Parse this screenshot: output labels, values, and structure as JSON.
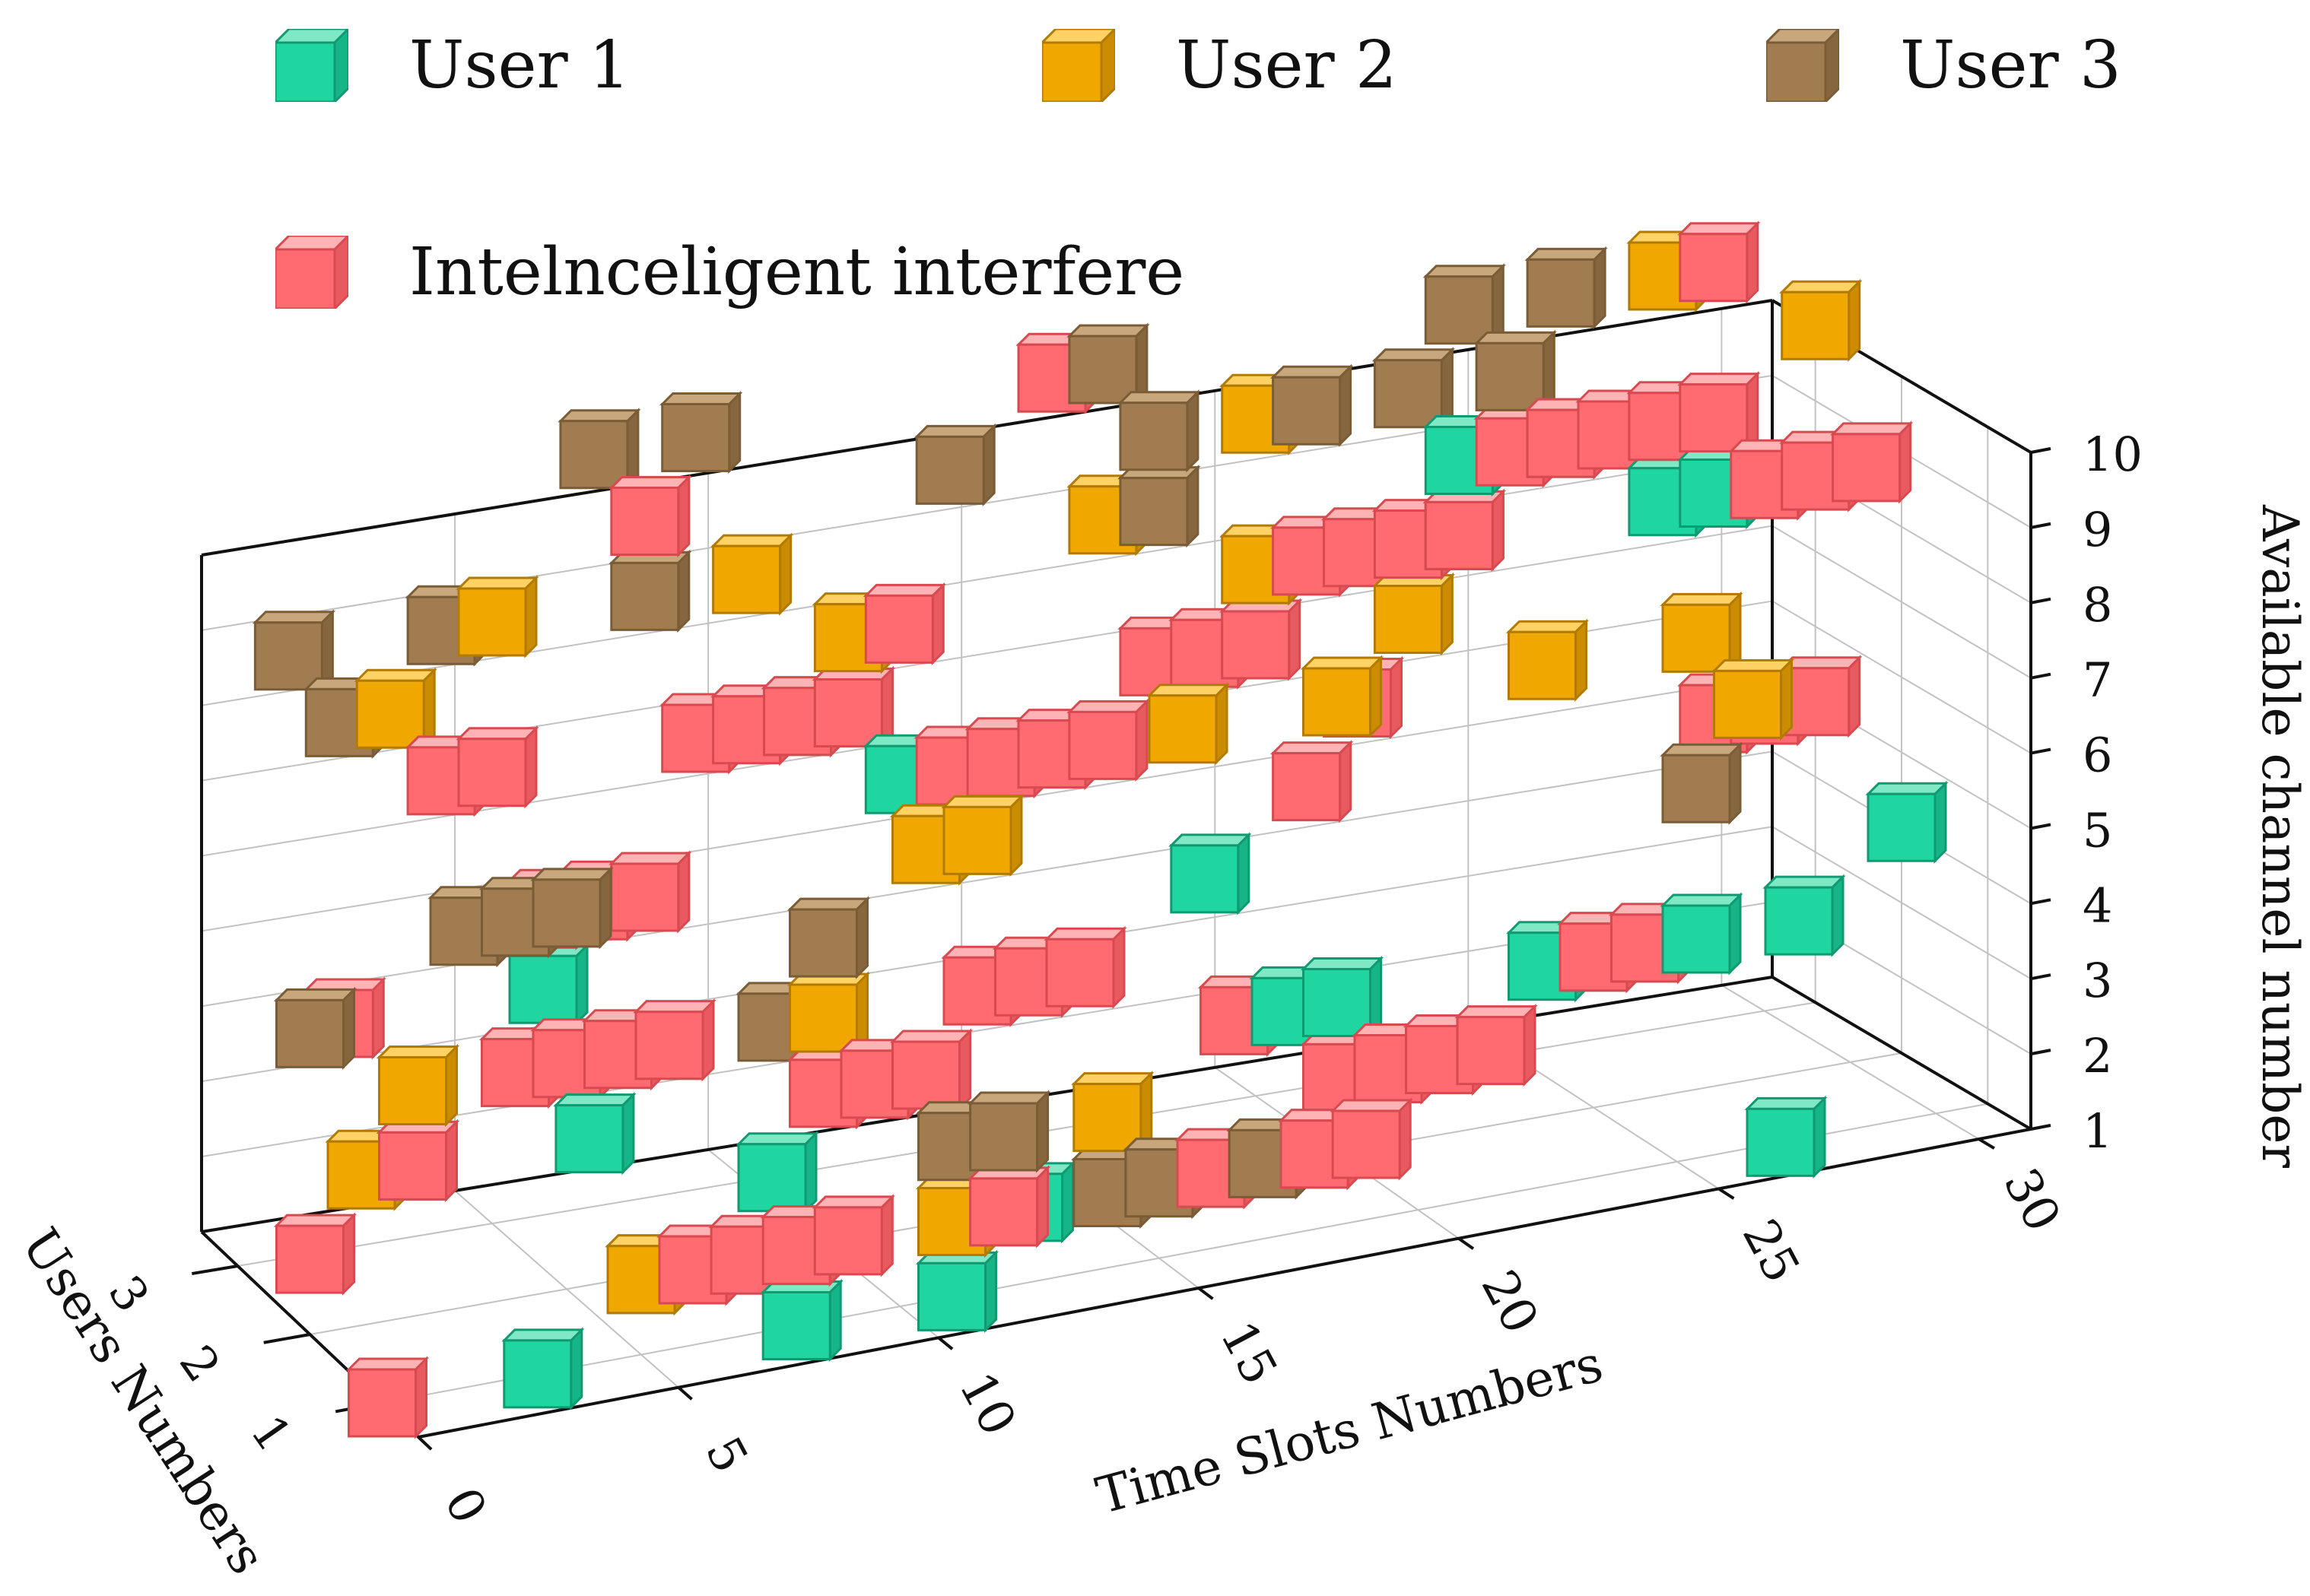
{
  "chart_data": {
    "type": "3d-bar",
    "title": "",
    "xlabel": "Time Slots Numbers",
    "ylabel": "Users Numbers",
    "zlabel": "Available channel number",
    "x_ticks": [
      "0",
      "5",
      "10",
      "15",
      "20",
      "25",
      "30"
    ],
    "y_ticks": [
      "1",
      "2",
      "3"
    ],
    "z_ticks": [
      "1",
      "2",
      "3",
      "4",
      "5",
      "6",
      "7",
      "8",
      "9",
      "10"
    ],
    "xlim": [
      0,
      31
    ],
    "ylim": [
      0.5,
      3.5
    ],
    "zlim": [
      1,
      10
    ],
    "grid": true,
    "legend_position": "top",
    "colors": {
      "user1": "#20d6a0",
      "user2": "#f0a800",
      "user3": "#a07c50",
      "interferer": "#ff6b70"
    },
    "legend": [
      {
        "key": "user1",
        "label": "User 1"
      },
      {
        "key": "user2",
        "label": "User 2"
      },
      {
        "key": "user3",
        "label": "User 3"
      },
      {
        "key": "interferer",
        "label": "Intelnceligent interfere"
      }
    ],
    "series": [
      {
        "name": "User 1",
        "key": "user1",
        "user": 1,
        "points": [
          {
            "t": 3,
            "c": 1
          },
          {
            "t": 6,
            "c": 2
          },
          {
            "t": 8,
            "c": 1
          },
          {
            "t": 11,
            "c": 1
          },
          {
            "t": 18,
            "c": 2
          },
          {
            "t": 27,
            "c": 1
          },
          {
            "t": 5,
            "c": 2
          },
          {
            "t": 4,
            "c": 4
          }
        ]
      },
      {
        "name": "User 1",
        "key": "user1",
        "user": 2,
        "points": [
          {
            "t": 2,
            "c": 3
          },
          {
            "t": 9,
            "c": 2
          },
          {
            "t": 14,
            "c": 1
          },
          {
            "t": 19,
            "c": 3
          },
          {
            "t": 20,
            "c": 3
          },
          {
            "t": 24,
            "c": 3
          },
          {
            "t": 25,
            "c": 3
          },
          {
            "t": 27,
            "c": 3
          },
          {
            "t": 29,
            "c": 3
          },
          {
            "t": 31,
            "c": 4
          }
        ]
      },
      {
        "name": "User 1",
        "key": "user1",
        "user": 3,
        "points": [
          {
            "t": 6,
            "c": 4
          },
          {
            "t": 13,
            "c": 6
          },
          {
            "t": 19,
            "c": 4
          },
          {
            "t": 24,
            "c": 9
          },
          {
            "t": 28,
            "c": 8
          },
          {
            "t": 29,
            "c": 8
          }
        ]
      },
      {
        "name": "User 2",
        "key": "user2",
        "user": 1,
        "points": [
          {
            "t": 5,
            "c": 2
          },
          {
            "t": 11,
            "c": 2
          },
          {
            "t": 14,
            "c": 3
          }
        ]
      },
      {
        "name": "User 2",
        "key": "user2",
        "user": 2,
        "points": [
          {
            "t": 1,
            "c": 3
          },
          {
            "t": 2,
            "c": 4
          },
          {
            "t": 7,
            "c": 4
          },
          {
            "t": 10,
            "c": 4
          },
          {
            "t": 12,
            "c": 6
          },
          {
            "t": 13,
            "c": 6
          },
          {
            "t": 17,
            "c": 7
          },
          {
            "t": 20,
            "c": 7
          },
          {
            "t": 24,
            "c": 7
          },
          {
            "t": 27,
            "c": 7
          },
          {
            "t": 28,
            "c": 6
          }
        ]
      },
      {
        "name": "User 2",
        "key": "user2",
        "user": 3,
        "points": [
          {
            "t": 3,
            "c": 8
          },
          {
            "t": 5,
            "c": 9
          },
          {
            "t": 10,
            "c": 9
          },
          {
            "t": 12,
            "c": 8
          },
          {
            "t": 17,
            "c": 9
          },
          {
            "t": 20,
            "c": 10
          },
          {
            "t": 20,
            "c": 8
          },
          {
            "t": 23,
            "c": 7
          },
          {
            "t": 25,
            "c": 10
          },
          {
            "t": 28,
            "c": 11
          },
          {
            "t": 31,
            "c": 10
          }
        ]
      },
      {
        "name": "User 3",
        "key": "user3",
        "user": 1,
        "points": [
          {
            "t": 11,
            "c": 3
          },
          {
            "t": 12,
            "c": 3
          },
          {
            "t": 14,
            "c": 2
          },
          {
            "t": 15,
            "c": 2
          },
          {
            "t": 17,
            "c": 2
          }
        ]
      },
      {
        "name": "User 3",
        "key": "user3",
        "user": 2,
        "points": [
          {
            "t": 0,
            "c": 5
          },
          {
            "t": 3,
            "c": 6
          },
          {
            "t": 4,
            "c": 6
          },
          {
            "t": 5,
            "c": 6
          },
          {
            "t": 9,
            "c": 4
          },
          {
            "t": 10,
            "c": 5
          },
          {
            "t": 27,
            "c": 5
          }
        ]
      },
      {
        "name": "User 3",
        "key": "user3",
        "user": 3,
        "points": [
          {
            "t": 1,
            "c": 9
          },
          {
            "t": 2,
            "c": 8
          },
          {
            "t": 4,
            "c": 9
          },
          {
            "t": 7,
            "c": 11
          },
          {
            "t": 9,
            "c": 11
          },
          {
            "t": 8,
            "c": 9
          },
          {
            "t": 11,
            "c": 7
          },
          {
            "t": 12,
            "c": 7
          },
          {
            "t": 14,
            "c": 10
          },
          {
            "t": 17,
            "c": 11
          },
          {
            "t": 18,
            "c": 10
          },
          {
            "t": 18,
            "c": 9
          },
          {
            "t": 21,
            "c": 10
          },
          {
            "t": 23,
            "c": 10
          },
          {
            "t": 24,
            "c": 11
          },
          {
            "t": 25,
            "c": 10
          },
          {
            "t": 26,
            "c": 11
          },
          {
            "t": 26,
            "c": 9
          },
          {
            "t": 24,
            "c": 8
          }
        ]
      },
      {
        "name": "Intelnceligent interfere",
        "key": "interferer",
        "user": 1,
        "points": [
          {
            "t": 0,
            "c": 1
          },
          {
            "t": 6,
            "c": 2
          },
          {
            "t": 7,
            "c": 2
          },
          {
            "t": 8,
            "c": 2
          },
          {
            "t": 9,
            "c": 2
          },
          {
            "t": 12,
            "c": 2
          },
          {
            "t": 16,
            "c": 2
          },
          {
            "t": 18,
            "c": 2
          },
          {
            "t": 19,
            "c": 2
          }
        ]
      },
      {
        "name": "Intelnceligent interfere",
        "key": "interferer",
        "user": 2,
        "points": [
          {
            "t": 0,
            "c": 2
          },
          {
            "t": 2,
            "c": 3
          },
          {
            "t": 4,
            "c": 4
          },
          {
            "t": 5,
            "c": 4
          },
          {
            "t": 6,
            "c": 4
          },
          {
            "t": 7,
            "c": 4
          },
          {
            "t": 10,
            "c": 3
          },
          {
            "t": 11,
            "c": 3
          },
          {
            "t": 12,
            "c": 3
          },
          {
            "t": 13,
            "c": 4
          },
          {
            "t": 14,
            "c": 4
          },
          {
            "t": 15,
            "c": 4
          },
          {
            "t": 18,
            "c": 3
          },
          {
            "t": 20,
            "c": 2
          },
          {
            "t": 21,
            "c": 2
          },
          {
            "t": 22,
            "c": 2
          },
          {
            "t": 23,
            "c": 2
          },
          {
            "t": 25,
            "c": 3
          },
          {
            "t": 26,
            "c": 3
          }
        ]
      },
      {
        "name": "Intelnceligent interfere",
        "key": "interferer",
        "user": 3,
        "points": [
          {
            "t": 2,
            "c": 4
          },
          {
            "t": 4,
            "c": 7
          },
          {
            "t": 5,
            "c": 7
          },
          {
            "t": 6,
            "c": 5
          },
          {
            "t": 7,
            "c": 5
          },
          {
            "t": 8,
            "c": 5
          },
          {
            "t": 9,
            "c": 7
          },
          {
            "t": 10,
            "c": 7
          },
          {
            "t": 11,
            "c": 7
          },
          {
            "t": 12,
            "c": 7
          },
          {
            "t": 14,
            "c": 6
          },
          {
            "t": 15,
            "c": 6
          },
          {
            "t": 16,
            "c": 6
          },
          {
            "t": 17,
            "c": 6
          },
          {
            "t": 18,
            "c": 7
          },
          {
            "t": 19,
            "c": 7
          },
          {
            "t": 20,
            "c": 7
          },
          {
            "t": 21,
            "c": 8
          },
          {
            "t": 22,
            "c": 8
          },
          {
            "t": 23,
            "c": 8
          },
          {
            "t": 24,
            "c": 8
          },
          {
            "t": 25,
            "c": 9
          },
          {
            "t": 26,
            "c": 9
          },
          {
            "t": 27,
            "c": 9
          },
          {
            "t": 28,
            "c": 9
          },
          {
            "t": 29,
            "c": 9
          },
          {
            "t": 30,
            "c": 8
          },
          {
            "t": 31,
            "c": 8
          },
          {
            "t": 32,
            "c": 8
          },
          {
            "t": 29,
            "c": 5
          },
          {
            "t": 30,
            "c": 5
          },
          {
            "t": 31,
            "c": 5
          },
          {
            "t": 29,
            "c": 11
          },
          {
            "t": 16,
            "c": 11
          },
          {
            "t": 8,
            "c": 10
          },
          {
            "t": 13,
            "c": 8
          },
          {
            "t": 21,
            "c": 5
          },
          {
            "t": 22,
            "c": 6
          }
        ]
      }
    ]
  }
}
